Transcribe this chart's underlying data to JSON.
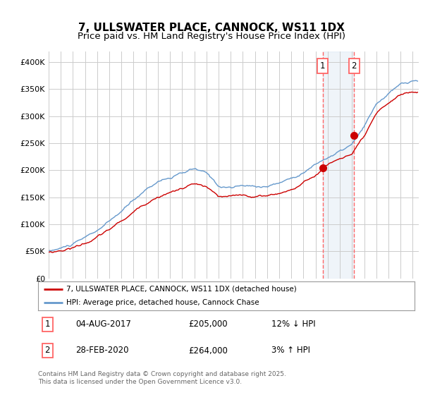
{
  "title1": "7, ULLSWATER PLACE, CANNOCK, WS11 1DX",
  "title2": "Price paid vs. HM Land Registry's House Price Index (HPI)",
  "ylabel_ticks": [
    "£0",
    "£50K",
    "£100K",
    "£150K",
    "£200K",
    "£250K",
    "£300K",
    "£350K",
    "£400K"
  ],
  "ytick_values": [
    0,
    50000,
    100000,
    150000,
    200000,
    250000,
    300000,
    350000,
    400000
  ],
  "ylim": [
    0,
    420000
  ],
  "xlim_start": 1995.0,
  "xlim_end": 2025.5,
  "vline1_x": 2017.58,
  "vline2_x": 2020.17,
  "point1_x": 2017.58,
  "point1_y": 205000,
  "point2_x": 2020.17,
  "point2_y": 264000,
  "legend_label_red": "7, ULLSWATER PLACE, CANNOCK, WS11 1DX (detached house)",
  "legend_label_blue": "HPI: Average price, detached house, Cannock Chase",
  "table_row1_num": "1",
  "table_row1_date": "04-AUG-2017",
  "table_row1_price": "£205,000",
  "table_row1_hpi": "12% ↓ HPI",
  "table_row2_num": "2",
  "table_row2_date": "28-FEB-2020",
  "table_row2_price": "£264,000",
  "table_row2_hpi": "3% ↑ HPI",
  "footer": "Contains HM Land Registry data © Crown copyright and database right 2025.\nThis data is licensed under the Open Government Licence v3.0.",
  "red_color": "#cc0000",
  "blue_color": "#6699cc",
  "vline_color": "#ff6666",
  "point_color": "#cc0000",
  "bg_color": "#ffffff",
  "grid_color": "#cccccc",
  "title_fontsize": 11,
  "subtitle_fontsize": 9.5,
  "hpi_base_years": [
    1995,
    1996,
    1997,
    1998,
    1999,
    2000,
    2001,
    2002,
    2003,
    2004,
    2005,
    2006,
    2007,
    2008,
    2009,
    2010,
    2011,
    2012,
    2013,
    2014,
    2015,
    2016,
    2017,
    2018,
    2019,
    2020,
    2021,
    2022,
    2023,
    2024,
    2025,
    2026
  ],
  "hpi_base_vals": [
    50000,
    55000,
    62000,
    72000,
    85000,
    100000,
    118000,
    138000,
    158000,
    175000,
    182000,
    188000,
    195000,
    185000,
    162000,
    160000,
    162000,
    160000,
    162000,
    168000,
    178000,
    190000,
    205000,
    218000,
    228000,
    240000,
    270000,
    310000,
    330000,
    345000,
    350000,
    350000
  ],
  "red_base_years": [
    1995,
    1996,
    1997,
    1998,
    1999,
    2000,
    2001,
    2002,
    2003,
    2004,
    2005,
    2006,
    2007,
    2008,
    2009,
    2010,
    2011,
    2012,
    2013,
    2014,
    2015,
    2016,
    2017,
    2018,
    2019,
    2020,
    2021,
    2022,
    2023,
    2024,
    2025,
    2026
  ],
  "red_base_vals": [
    48000,
    52000,
    58000,
    67000,
    78000,
    91000,
    106000,
    122000,
    140000,
    155000,
    163000,
    170000,
    178000,
    170000,
    150000,
    148000,
    150000,
    148000,
    150000,
    155000,
    163000,
    175000,
    190000,
    210000,
    222000,
    230000,
    258000,
    295000,
    315000,
    330000,
    335000,
    335000
  ]
}
